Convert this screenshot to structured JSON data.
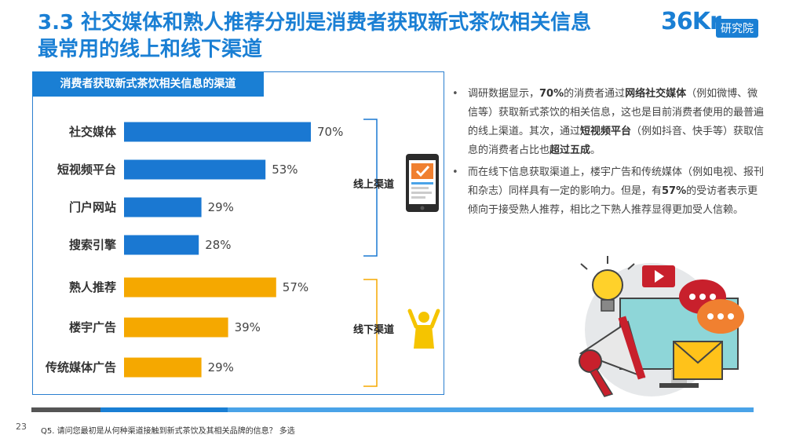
{
  "slide": {
    "title_line1": "3.3 社交媒体和熟人推荐分别是消费者获取新式茶饮相关信息",
    "title_line2": "最常用的线上和线下渠道",
    "logo_text": "36Kr",
    "logo_badge": "研究院",
    "page_number": "23",
    "footnote": "Q5. 请问您最初是从何种渠道接触到新式茶饮及其相关品牌的信息？ 多选"
  },
  "bullets": [
    {
      "parts": [
        {
          "t": "调研数据显示，",
          "b": false
        },
        {
          "t": "70%",
          "b": true
        },
        {
          "t": "的消费者通过",
          "b": false
        },
        {
          "t": "网络社交媒体",
          "b": true
        },
        {
          "t": "（例如微博、微信等）获取新式茶饮的相关信息，这也是目前消费者使用的最普遍的线上渠道。其次，通过",
          "b": false
        },
        {
          "t": "短视频平台",
          "b": true
        },
        {
          "t": "（例如抖音、快手等）获取信息的消费者占比也",
          "b": false
        },
        {
          "t": "超过五成",
          "b": true
        },
        {
          "t": "。",
          "b": false
        }
      ]
    },
    {
      "parts": [
        {
          "t": "而在线下信息获取渠道上，楼宇广告和传统媒体（例如电视、报刊和杂志）同样具有一定的影响力。但是，有",
          "b": false
        },
        {
          "t": "57%",
          "b": true
        },
        {
          "t": "的受访者表示更倾向于接受熟人推荐，相比之下熟人推荐显得更加受人信赖。",
          "b": false
        }
      ]
    }
  ],
  "chart_data": {
    "type": "bar",
    "orientation": "horizontal",
    "title": "消费者获取新式茶饮相关信息的渠道",
    "categories": [
      "社交媒体",
      "短视频平台",
      "门户网站",
      "搜索引擎",
      "熟人推荐",
      "楼宇广告",
      "传统媒体广告"
    ],
    "values": [
      70,
      53,
      29,
      28,
      57,
      39,
      29
    ],
    "value_suffix": "%",
    "groups": [
      {
        "name": "线上渠道",
        "categories": [
          "社交媒体",
          "短视频平台",
          "门户网站",
          "搜索引擎"
        ],
        "color": "#1a78d2"
      },
      {
        "name": "线下渠道",
        "categories": [
          "熟人推荐",
          "楼宇广告",
          "传统媒体广告"
        ],
        "color": "#f5a800"
      }
    ],
    "xlim": [
      0,
      100
    ]
  },
  "colors": {
    "title": "#1a7fd4",
    "online": "#1a78d2",
    "offline": "#f5a800",
    "bottom_bar": [
      "#555555",
      "#1a7fd4",
      "#4aa3e8"
    ]
  },
  "icons": [
    "smartphone-icon",
    "person-cheering-icon",
    "lightbulb-icon",
    "video-play-icon",
    "speech-bubble-icon",
    "megaphone-icon",
    "envelope-icon"
  ]
}
